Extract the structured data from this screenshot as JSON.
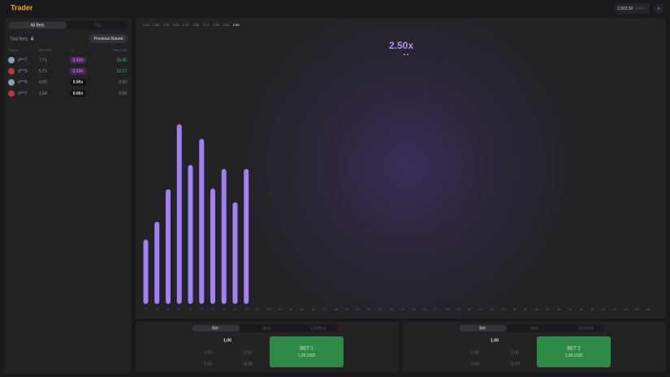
{
  "header": {
    "logo": "Trader",
    "balance": "2,502.50",
    "currency": "USDT"
  },
  "bets_panel": {
    "tabs": [
      "All Bets",
      "Top"
    ],
    "total_label": "Total Bets:",
    "total": "4",
    "previous_button": "Previous Round",
    "columns": [
      "Player",
      "Bet USD",
      "X",
      "Win USD"
    ],
    "rows": [
      [
        "d***7",
        "7.71",
        "2.13x",
        "16.45"
      ],
      [
        "d***9",
        "5.71",
        "2.13x",
        "12.17"
      ],
      [
        "d***8",
        "4.00",
        "0.00x",
        "0.00"
      ],
      [
        "d***7",
        "1.54",
        "0.00x",
        "0.00"
      ]
    ]
  },
  "history": [
    "1.03",
    "1.84",
    "2.13",
    "1.52",
    "2.07",
    "2.60",
    "2.14",
    "2.53",
    "1.84",
    "2.50"
  ],
  "multiplier": "2.50x",
  "chart_data": {
    "type": "bar",
    "color": "#a27ff2",
    "categories": [
      "1",
      "2",
      "3",
      "4",
      "5",
      "6",
      "7",
      "8",
      "9",
      "10",
      "11",
      "12",
      "13",
      "14",
      "15",
      "16",
      "17",
      "18",
      "19",
      "20",
      "21",
      "22",
      "23",
      "24",
      "25",
      "26",
      "27",
      "28",
      "29",
      "30",
      "31",
      "32",
      "33",
      "34",
      "35",
      "36",
      "37",
      "38",
      "39",
      "40",
      "41",
      "42",
      "43",
      "44",
      "45",
      "46"
    ],
    "values": [
      79,
      101,
      141,
      221,
      171,
      203,
      142,
      166,
      125,
      166,
      null,
      null,
      null,
      null,
      null,
      null,
      null,
      null,
      null,
      null,
      null,
      null,
      null,
      null,
      null,
      null,
      null,
      null,
      null,
      null,
      null,
      null,
      null,
      null,
      null,
      null,
      null,
      null,
      null,
      null,
      null,
      null,
      null,
      null,
      null,
      null
    ]
  },
  "bet_panels": [
    {
      "tabs": [
        "Bet",
        "Auto",
        "Cashout"
      ],
      "amount": "1.00",
      "quick": [
        "1.00",
        "2.00",
        "5.00",
        "10.00"
      ],
      "button": "BET 1",
      "button_amount": "1.00 USD"
    },
    {
      "tabs": [
        "Bet",
        "Auto",
        "Cashout"
      ],
      "amount": "1.00",
      "quick": [
        "1.00",
        "2.00",
        "5.00",
        "10.00"
      ],
      "button": "BET 2",
      "button_amount": "1.00 USD"
    }
  ]
}
